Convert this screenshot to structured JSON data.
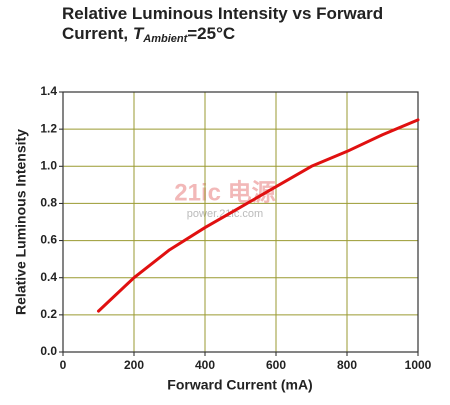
{
  "chart_data": {
    "type": "line",
    "title": {
      "text": "Relative Luminous Intensity vs Forward Current,",
      "variable": "T",
      "subscript": "Ambient",
      "condition": "=25°C"
    },
    "x_label": "Forward Current (mA)",
    "y_label": "Relative Luminous Intensity",
    "watermark": [
      "21ic 电源",
      "power.21ic.com"
    ],
    "x": [
      100,
      200,
      300,
      400,
      500,
      600,
      700,
      800,
      900,
      1000
    ],
    "series": [
      {
        "name": "Relative Luminous Intensity",
        "color": "#e01010",
        "values": [
          0.22,
          0.4,
          0.55,
          0.67,
          0.78,
          0.89,
          1.0,
          1.08,
          1.17,
          1.25
        ]
      }
    ],
    "xlim": [
      0,
      1000
    ],
    "xticks": [
      0,
      200,
      400,
      600,
      800,
      1000
    ],
    "ylim": [
      0,
      1.4
    ],
    "yticks": [
      {
        "value": 0,
        "label": "0.0"
      },
      0.2,
      0.4,
      0.6,
      0.8,
      {
        "value": 1,
        "label": "1.0"
      },
      1.2,
      1.4
    ],
    "grid": true
  }
}
